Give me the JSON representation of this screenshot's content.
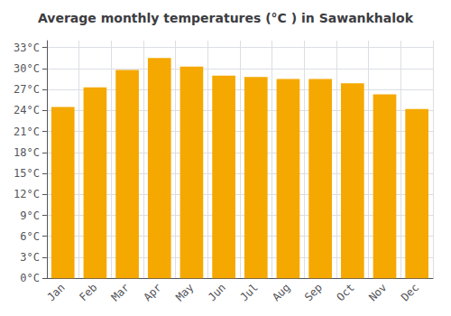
{
  "chart_data": {
    "type": "bar",
    "title": "Average monthly temperatures (°C ) in Sawankhalok",
    "categories": [
      "Jan",
      "Feb",
      "Mar",
      "Apr",
      "May",
      "Jun",
      "Jul",
      "Aug",
      "Sep",
      "Oct",
      "Nov",
      "Dec"
    ],
    "values": [
      24.5,
      27.3,
      29.8,
      31.5,
      30.3,
      29.0,
      28.8,
      28.5,
      28.5,
      27.9,
      26.3,
      24.2
    ],
    "color": "#F5A800",
    "ylim": [
      0,
      34
    ],
    "yticks": [
      {
        "value": 0,
        "label": "0°C"
      },
      {
        "value": 3,
        "label": "3°C"
      },
      {
        "value": 6,
        "label": "6°C"
      },
      {
        "value": 9,
        "label": "9°C"
      },
      {
        "value": 12,
        "label": "12°C"
      },
      {
        "value": 15,
        "label": "15°C"
      },
      {
        "value": 18,
        "label": "18°C"
      },
      {
        "value": 21,
        "label": "21°C"
      },
      {
        "value": 24,
        "label": "24°C"
      },
      {
        "value": 27,
        "label": "27°C"
      },
      {
        "value": 30,
        "label": "30°C"
      },
      {
        "value": 33,
        "label": "33°C"
      }
    ],
    "grid": true
  }
}
